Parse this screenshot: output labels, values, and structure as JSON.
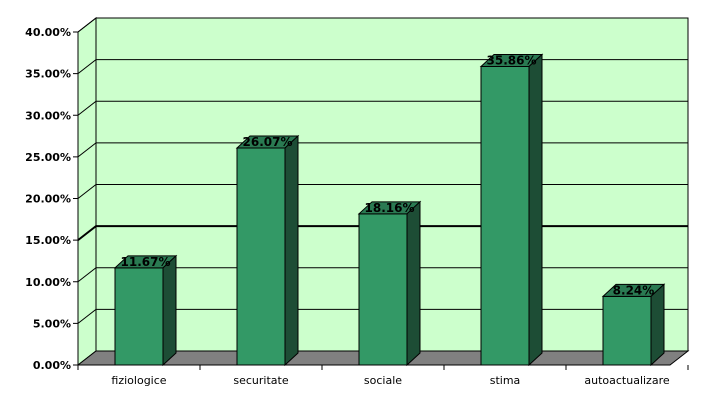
{
  "chart_data": {
    "type": "bar",
    "title": "",
    "xlabel": "",
    "ylabel": "",
    "categories": [
      "fiziologice",
      "securitate",
      "sociale",
      "stima",
      "autoactualizare"
    ],
    "values": [
      11.67,
      26.07,
      18.16,
      35.86,
      8.24
    ],
    "value_labels": [
      "11.67%",
      "26.07%",
      "18.16%",
      "35.86%",
      "8.24%"
    ],
    "y_ticks": [
      0,
      5,
      10,
      15,
      20,
      25,
      30,
      35,
      40
    ],
    "y_tick_labels": [
      "0.00%",
      "5.00%",
      "10.00%",
      "15.00%",
      "20.00%",
      "25.00%",
      "30.00%",
      "35.00%",
      "40.00%"
    ],
    "ylim": [
      0,
      40
    ],
    "grid": true,
    "legend": "none",
    "style": "3d-column",
    "colors": {
      "plot_background": "#ccffcc",
      "bar_front": "#339966",
      "bar_top": "#2a7a52",
      "bar_side": "#1d4d35",
      "floor": "#808080",
      "gridline": "#000000"
    }
  }
}
